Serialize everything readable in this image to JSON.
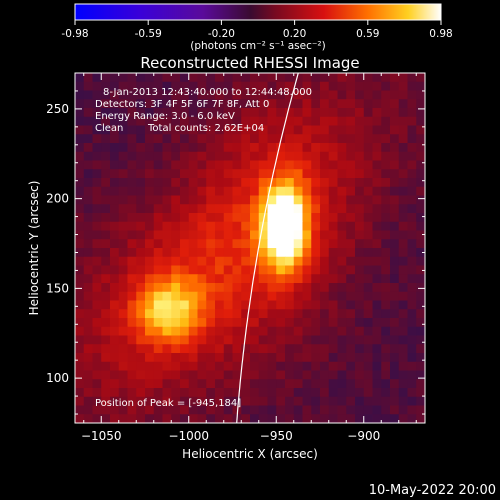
{
  "colorbar": {
    "ticks": [
      "-0.98",
      "-0.59",
      "-0.20",
      "0.20",
      "0.59",
      "0.98"
    ],
    "unit_label": "(photons cm⁻² s⁻¹ asec⁻²)"
  },
  "chart_data": {
    "type": "heatmap",
    "title": "Reconstructed RHESSI Image",
    "xlabel": "Heliocentric X (arcsec)",
    "ylabel": "Heliocentric Y (arcsec)",
    "xlim": [
      -1065,
      -865
    ],
    "ylim": [
      75,
      270
    ],
    "x_ticks": [
      -1050,
      -1000,
      -950,
      -900
    ],
    "y_ticks": [
      100,
      150,
      200,
      250
    ],
    "x_tick_labels": [
      "−1050",
      "−1000",
      "−950",
      "−900"
    ],
    "y_tick_labels": [
      "100",
      "150",
      "200",
      "250"
    ],
    "sources": [
      {
        "x": -945,
        "y": 184,
        "peak": 0.98
      },
      {
        "x": -1012,
        "y": 138,
        "peak": 0.62
      }
    ],
    "annotations": {
      "time_range": "8-Jan-2013 12:43:40.000 to 12:44:48.000",
      "detectors": "Detectors: 3F 4F 5F 6F 7F 8F, Att 0",
      "energy_range": "Energy Range: 3.0 - 6.0 keV",
      "method": "Clean",
      "total_counts": "Total counts: 2.62E+04",
      "peak_position": "Position of Peak = [-945,184]"
    }
  },
  "footer": {
    "timestamp": "10-May-2022 20:00"
  },
  "colors": {
    "background": "#000000",
    "text": "#ffffff"
  }
}
